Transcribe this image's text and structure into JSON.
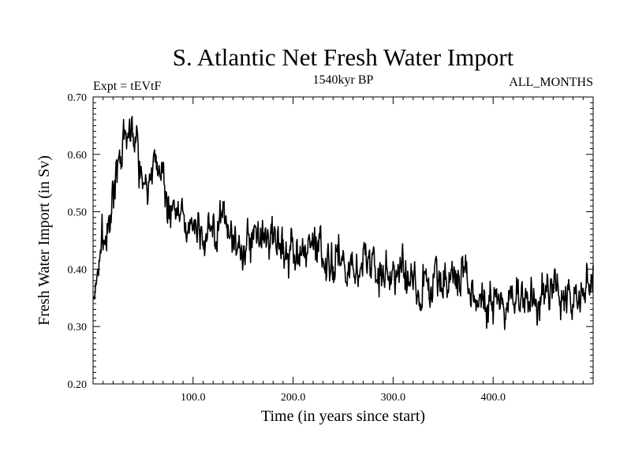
{
  "chart_data": {
    "type": "line",
    "title": "S. Atlantic Net Fresh Water Import",
    "subtitle_left": "Expt = tEVtF",
    "subtitle_center": "1540kyr BP",
    "subtitle_right": "ALL_MONTHS",
    "xlabel": "Time (in years since start)",
    "ylabel": "Fresh Water Import (in Sv)",
    "xlim": [
      0,
      500
    ],
    "ylim": [
      0.2,
      0.7
    ],
    "x_ticks": [
      100,
      200,
      300,
      400
    ],
    "x_tick_labels": [
      "100.0",
      "200.0",
      "300.0",
      "400.0"
    ],
    "y_ticks": [
      0.2,
      0.3,
      0.4,
      0.5,
      0.6,
      0.7
    ],
    "y_tick_labels": [
      "0.20",
      "0.30",
      "0.40",
      "0.50",
      "0.60",
      "0.70"
    ],
    "series": [
      {
        "name": "S. Atlantic net fresh water import",
        "color": "#000000",
        "x": [
          0,
          5,
          10,
          15,
          20,
          25,
          30,
          35,
          40,
          45,
          50,
          55,
          60,
          65,
          70,
          75,
          80,
          85,
          90,
          95,
          100,
          110,
          120,
          130,
          140,
          150,
          160,
          170,
          180,
          190,
          200,
          210,
          220,
          230,
          240,
          250,
          260,
          270,
          280,
          290,
          300,
          310,
          320,
          330,
          340,
          350,
          360,
          370,
          380,
          390,
          400,
          410,
          420,
          430,
          440,
          450,
          460,
          470,
          480,
          490,
          500
        ],
        "values": [
          0.34,
          0.4,
          0.45,
          0.47,
          0.53,
          0.57,
          0.61,
          0.63,
          0.64,
          0.62,
          0.56,
          0.55,
          0.58,
          0.59,
          0.56,
          0.5,
          0.52,
          0.5,
          0.48,
          0.49,
          0.47,
          0.47,
          0.46,
          0.48,
          0.45,
          0.44,
          0.45,
          0.46,
          0.46,
          0.44,
          0.41,
          0.42,
          0.43,
          0.42,
          0.42,
          0.43,
          0.4,
          0.41,
          0.4,
          0.39,
          0.39,
          0.4,
          0.38,
          0.37,
          0.38,
          0.38,
          0.38,
          0.39,
          0.36,
          0.35,
          0.34,
          0.35,
          0.37,
          0.34,
          0.33,
          0.36,
          0.36,
          0.36,
          0.37,
          0.37,
          0.38
        ]
      }
    ]
  }
}
